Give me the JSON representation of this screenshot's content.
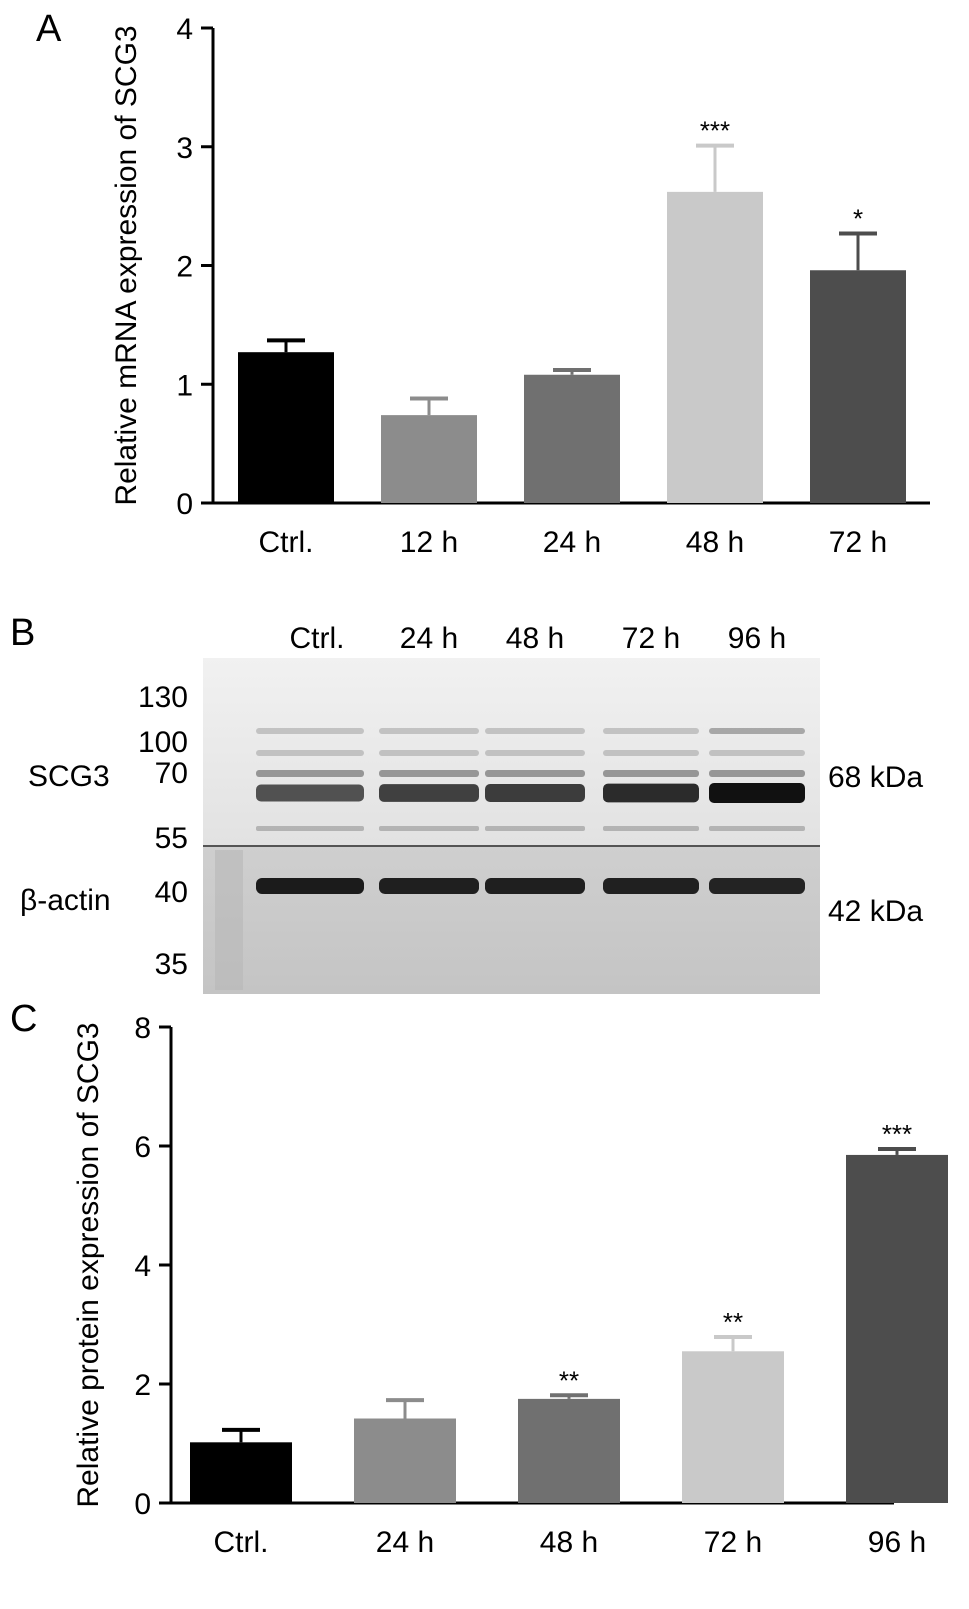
{
  "panels": [
    {
      "letter": "A"
    },
    {
      "letter": "B"
    },
    {
      "letter": "C"
    }
  ],
  "chart_data": [
    {
      "type": "bar",
      "panel": "A",
      "ylabel": "Relative mRNA expression of SCG3",
      "categories": [
        "Ctrl.",
        "12 h",
        "24 h",
        "48 h",
        "72 h"
      ],
      "values": [
        1.27,
        0.74,
        1.08,
        2.62,
        1.96
      ],
      "errors": [
        0.1,
        0.14,
        0.04,
        0.39,
        0.31
      ],
      "significance": [
        "",
        "",
        "",
        "***",
        "*"
      ],
      "colors": [
        "#000000",
        "#8c8c8c",
        "#707070",
        "#c9c9c9",
        "#4d4d4d"
      ],
      "ylim": [
        0,
        4
      ],
      "yticks": [
        "0",
        "1",
        "2",
        "3",
        "4"
      ]
    },
    {
      "type": "bar",
      "panel": "C",
      "ylabel": "Relative protein expression of SCG3",
      "categories": [
        "Ctrl.",
        "24 h",
        "48 h",
        "72 h",
        "96 h"
      ],
      "values": [
        1.02,
        1.42,
        1.75,
        2.55,
        5.85
      ],
      "errors": [
        0.21,
        0.31,
        0.06,
        0.24,
        0.1
      ],
      "significance": [
        "",
        "",
        "**",
        "**",
        "***"
      ],
      "colors": [
        "#000000",
        "#8c8c8c",
        "#707070",
        "#c9c9c9",
        "#4d4d4d"
      ],
      "ylim": [
        0,
        8
      ],
      "yticks": [
        "0",
        "2",
        "4",
        "6",
        "8"
      ]
    }
  ],
  "blot": {
    "lanes": [
      "Ctrl.",
      "24 h",
      "48 h",
      "72 h",
      "96 h"
    ],
    "rows": [
      {
        "label": "SCG3",
        "size": "68 kDa",
        "markers": [
          "130",
          "100",
          "70",
          "55"
        ],
        "band_intensity": [
          0.7,
          0.78,
          0.8,
          0.88,
          1.0
        ]
      },
      {
        "label": "β-actin",
        "size": "42 kDa",
        "markers": [
          "40",
          "35"
        ],
        "band_intensity": [
          0.95,
          0.93,
          0.93,
          0.92,
          0.9
        ]
      }
    ]
  }
}
